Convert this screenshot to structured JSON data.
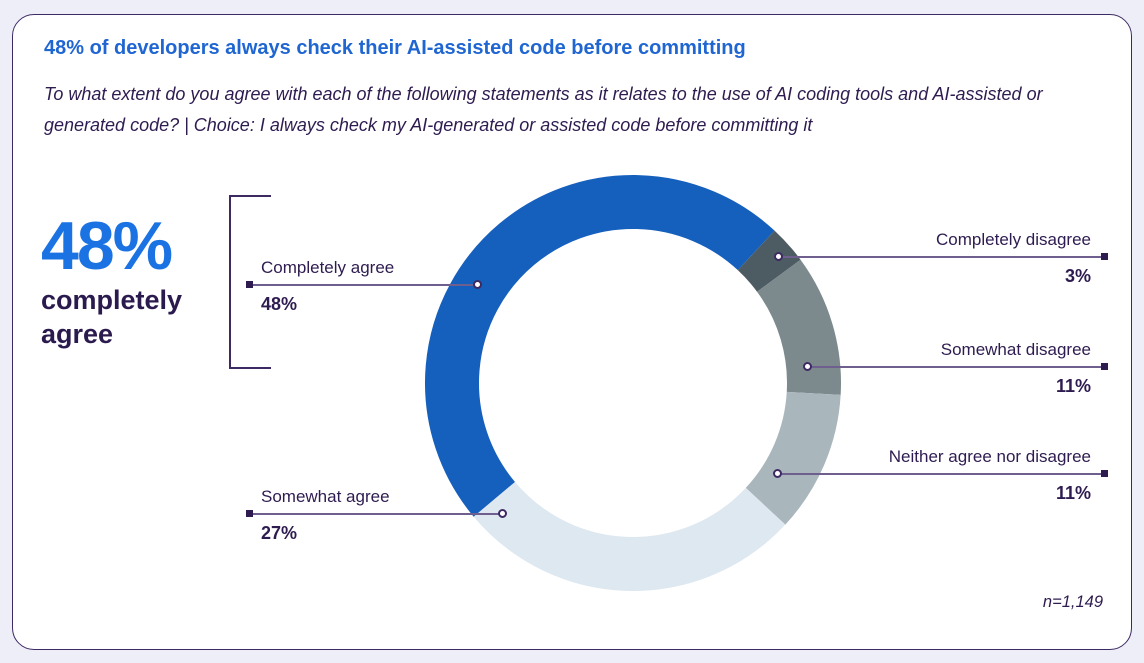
{
  "card": {
    "title": "48% of developers always check their AI-assisted code before committing",
    "subtitle": "To what extent do you agree with each of the following statements as it relates to the use of AI coding tools and AI-assisted or generated code? | Choice: I always check my AI-generated or assisted code before committing it",
    "sample_size": "n=1,149"
  },
  "highlight": {
    "value": "48%",
    "label_line1": "completely",
    "label_line2": "agree"
  },
  "chart_data": {
    "type": "pie",
    "donut": true,
    "title": "48% of developers always check their AI-assisted code before committing",
    "sample_size": "n=1,149",
    "start_angle_deg": 230,
    "legend_position": "callout-labels",
    "slices": [
      {
        "label": "Completely agree",
        "value": 48,
        "display": "48%",
        "color": "#155fbd"
      },
      {
        "label": "Completely disagree",
        "value": 3,
        "display": "3%",
        "color": "#4d5c63"
      },
      {
        "label": "Somewhat disagree",
        "value": 11,
        "display": "11%",
        "color": "#7c8a8e"
      },
      {
        "label": "Neither agree nor disagree",
        "value": 11,
        "display": "11%",
        "color": "#a9b6bc"
      },
      {
        "label": "Somewhat agree",
        "value": 27,
        "display": "27%",
        "color": "#dee8f0"
      }
    ]
  },
  "colors": {
    "title_blue": "#1f66d2",
    "highlight_blue": "#1b72e2",
    "dark_purple_text": "#2e1c50",
    "leader_line": "#6f5f8e",
    "card_border": "#3e2a63",
    "page_background": "#edeef7",
    "card_background": "#ffffff"
  }
}
